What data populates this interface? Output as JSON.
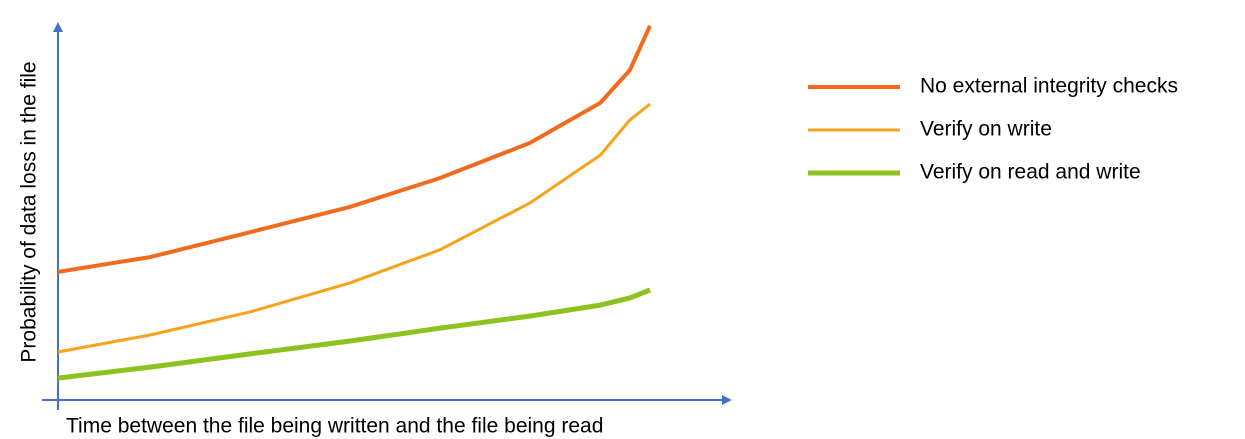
{
  "chart_data": {
    "type": "line",
    "x_label": "Time between the file being written and the file being read",
    "y_label": "Probability of data loss in the file",
    "x": [
      0,
      13.7,
      28.6,
      43.5,
      56.8,
      70.2,
      80.7,
      85.1,
      88.1
    ],
    "xlim": [
      0,
      100
    ],
    "ylim": [
      0,
      100
    ],
    "legend": "right",
    "series": [
      {
        "name": "No external integrity checks",
        "color": "#f26b1d",
        "values": [
          33.9,
          37.8,
          44.4,
          51.1,
          58.7,
          68.0,
          78.6,
          87.3,
          99
        ]
      },
      {
        "name": "Verify on write",
        "color": "#f8a21b",
        "values": [
          12.7,
          17.2,
          23.3,
          31.0,
          39.7,
          52.1,
          64.8,
          74.1,
          78.3
        ]
      },
      {
        "name": "Verify on read and write",
        "color": "#8dc21f",
        "values": [
          5.8,
          8.7,
          12.2,
          15.6,
          19.0,
          22.2,
          25.1,
          27.0,
          29.1
        ]
      }
    ]
  }
}
